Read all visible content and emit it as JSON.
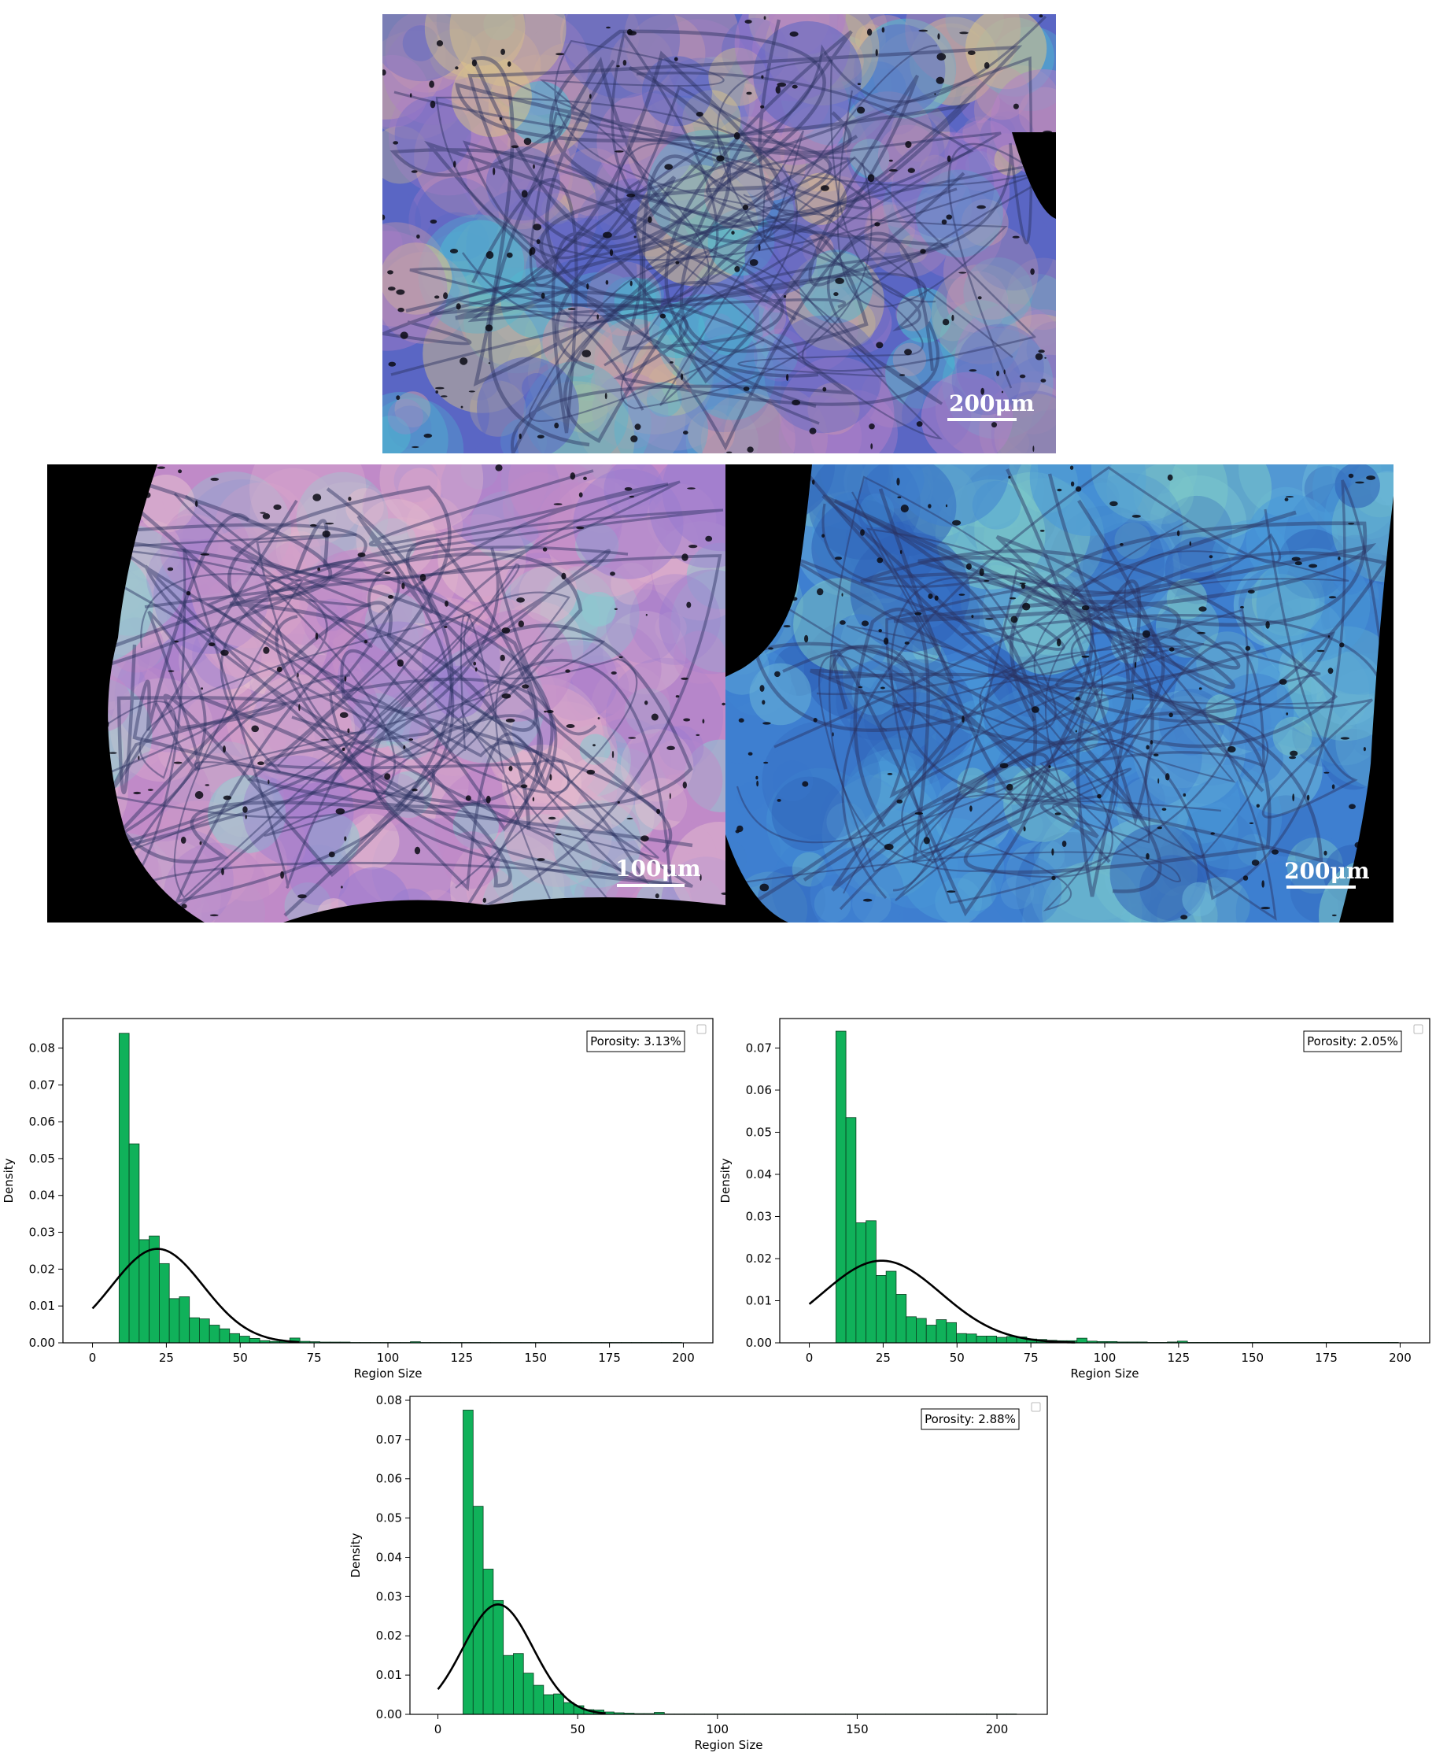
{
  "micrographs": [
    {
      "id": "top",
      "scale_label": "200μm",
      "palette": [
        "#5a66c4",
        "#b07fc8",
        "#c89aa8",
        "#4fb7d0",
        "#d8c28a"
      ]
    },
    {
      "id": "bottom-left",
      "scale_label": "100μm",
      "palette": [
        "#c08ac8",
        "#d8a3c8",
        "#9a7cd0",
        "#e6c0cf",
        "#8ec9d0"
      ]
    },
    {
      "id": "bottom-right",
      "scale_label": "200μm",
      "palette": [
        "#3e7fd0",
        "#4a9ad8",
        "#6bb6d8",
        "#2f62b8",
        "#7cc8c8"
      ]
    }
  ],
  "colors": {
    "bar_fill": "#10b15a",
    "bar_edge": "#0a3d20",
    "curve": "#000000"
  },
  "chart_data": [
    {
      "type": "bar",
      "xlabel": "Region Size",
      "ylabel": "Density",
      "xlim": [
        -10,
        210
      ],
      "ylim": [
        0,
        0.088
      ],
      "xticks": [
        0,
        25,
        50,
        75,
        100,
        125,
        150,
        175,
        200
      ],
      "yticks": [
        0.0,
        0.01,
        0.02,
        0.03,
        0.04,
        0.05,
        0.06,
        0.07,
        0.08
      ],
      "annotation": "Porosity: 3.13%",
      "bin_start": 9,
      "bin_width": 3.4,
      "values": [
        0.084,
        0.054,
        0.028,
        0.029,
        0.0215,
        0.012,
        0.0125,
        0.0068,
        0.0065,
        0.0048,
        0.0038,
        0.0025,
        0.0018,
        0.0012,
        0.0006,
        0.0004,
        0.0004,
        0.0013,
        0.0004,
        0.0003,
        0.0002,
        0.0002,
        0.0002,
        0.0001,
        0.0001,
        0.0001,
        0.0001,
        0.0001,
        0.0001,
        0.0003,
        0.0001,
        0.0001,
        0.0001,
        0.0001,
        0.0001,
        0.0001,
        0.0001,
        0.0001,
        0.0001,
        0.0001,
        0.0001,
        0.0001,
        0.0001,
        0.0001,
        0.0001,
        0.0001,
        0.0001,
        0.0001,
        0.0001,
        0.0001,
        0.0001,
        0.0001,
        0.0001,
        0.0001,
        0.0001,
        0.0001
      ],
      "curve": {
        "mean": 22.0,
        "sd": 15.5,
        "peak": 0.0255,
        "x_from": 0,
        "x_to": 70
      }
    },
    {
      "type": "bar",
      "xlabel": "Region Size",
      "ylabel": "Density",
      "xlim": [
        -10,
        210
      ],
      "ylim": [
        0,
        0.077
      ],
      "xticks": [
        0,
        25,
        50,
        75,
        100,
        125,
        150,
        175,
        200
      ],
      "yticks": [
        0.0,
        0.01,
        0.02,
        0.03,
        0.04,
        0.05,
        0.06,
        0.07
      ],
      "annotation": "Porosity: 2.05%",
      "bin_start": 9,
      "bin_width": 3.4,
      "values": [
        0.074,
        0.0535,
        0.0285,
        0.029,
        0.016,
        0.017,
        0.0115,
        0.0062,
        0.0058,
        0.0042,
        0.0055,
        0.0048,
        0.0022,
        0.0021,
        0.0016,
        0.0016,
        0.0013,
        0.0015,
        0.0014,
        0.0009,
        0.0008,
        0.0006,
        0.0005,
        0.0005,
        0.0011,
        0.0004,
        0.0003,
        0.0003,
        0.0002,
        0.0002,
        0.0002,
        0.0001,
        0.0001,
        0.0002,
        0.0004,
        0.0001,
        0.0001,
        0.0001,
        0.0001,
        0.0001,
        0.0001,
        0.0001,
        0.0001,
        0.0001,
        0.0001,
        0.0001,
        0.0001,
        0.0001,
        0.0001,
        0.0001,
        0.0001,
        0.0001,
        0.0001,
        0.0001,
        0.0001,
        0.0001
      ],
      "curve": {
        "mean": 24.5,
        "sd": 20.0,
        "peak": 0.0195,
        "x_from": 0,
        "x_to": 90
      }
    },
    {
      "type": "bar",
      "xlabel": "Region Size",
      "ylabel": "Density",
      "xlim": [
        -10,
        218
      ],
      "ylim": [
        0,
        0.081
      ],
      "xticks": [
        0,
        50,
        100,
        150,
        200
      ],
      "yticks": [
        0.0,
        0.01,
        0.02,
        0.03,
        0.04,
        0.05,
        0.06,
        0.07,
        0.08
      ],
      "annotation": "Porosity: 2.88%",
      "bin_start": 9,
      "bin_width": 3.6,
      "values": [
        0.0775,
        0.053,
        0.037,
        0.029,
        0.015,
        0.0155,
        0.0105,
        0.0074,
        0.005,
        0.0052,
        0.003,
        0.0022,
        0.0012,
        0.0011,
        0.0006,
        0.0004,
        0.0003,
        0.0002,
        0.0002,
        0.0005,
        0.0001,
        0.0001,
        0.0001,
        0.0001,
        0.0001,
        0.0001,
        0.0001,
        0.0001,
        0.0001,
        0.0001,
        0.0001,
        0.0001,
        0.0001,
        0.0001,
        0.0001,
        0.0001,
        0.0001,
        0.0001,
        0.0001,
        0.0001,
        0.0001,
        0.0001,
        0.0001,
        0.0001,
        0.0001,
        0.0001,
        0.0001,
        0.0001,
        0.0001,
        0.0001,
        0.0001,
        0.0001,
        0.0001,
        0.0001,
        0.0001
      ],
      "curve": {
        "mean": 21.5,
        "sd": 12.5,
        "peak": 0.028,
        "x_from": 0,
        "x_to": 60
      }
    }
  ]
}
